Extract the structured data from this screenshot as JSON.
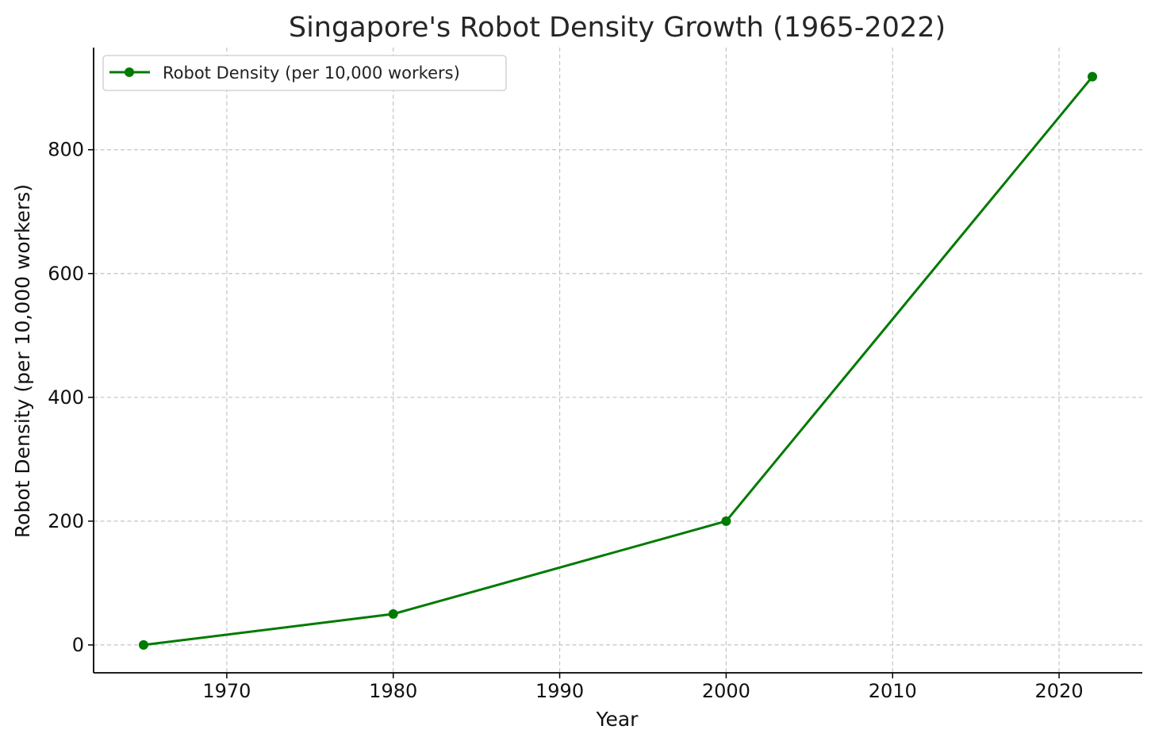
{
  "chart_data": {
    "type": "line",
    "title": "Singapore's Robot Density Growth (1965-2022)",
    "xlabel": "Year",
    "ylabel": "Robot Density (per 10,000 workers)",
    "x": [
      1965,
      1980,
      2000,
      2022
    ],
    "series": [
      {
        "name": "Robot Density (per 10,000 workers)",
        "values": [
          0,
          50,
          200,
          918
        ],
        "color": "#007a00",
        "marker": "circle"
      }
    ],
    "xlim": [
      1962,
      2025
    ],
    "ylim": [
      -45,
      965
    ],
    "xticks": [
      1970,
      1980,
      1990,
      2000,
      2010,
      2020
    ],
    "xtick_labels": [
      "1970",
      "1980",
      "1990",
      "2000",
      "2010",
      "2020"
    ],
    "yticks": [
      0,
      200,
      400,
      600,
      800
    ],
    "ytick_labels": [
      "0",
      "200",
      "400",
      "600",
      "800"
    ],
    "grid": true,
    "legend_position": "top-left"
  }
}
